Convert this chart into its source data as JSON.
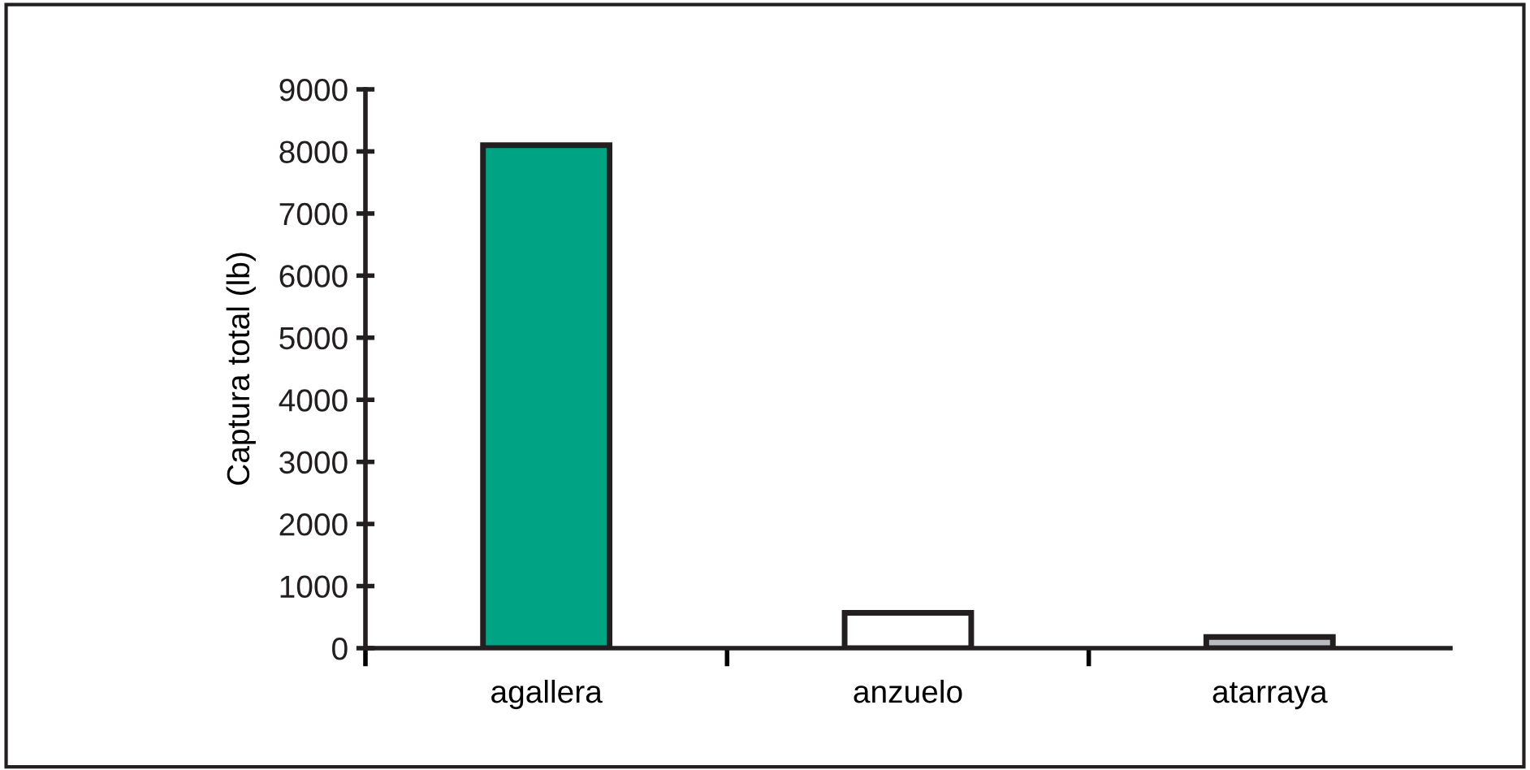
{
  "chart_data": {
    "type": "bar",
    "ylabel": "Captura total (lb)",
    "categories": [
      "agallera",
      "anzuelo",
      "atarraya"
    ],
    "values": [
      8100,
      570,
      180
    ],
    "colors": [
      "#00a383",
      "#ffffff",
      "#b8bcc0"
    ],
    "ylim": [
      0,
      9000
    ],
    "yticks": [
      0,
      1000,
      2000,
      3000,
      4000,
      5000,
      6000,
      7000,
      8000,
      9000
    ],
    "grid": false,
    "legend": false
  }
}
